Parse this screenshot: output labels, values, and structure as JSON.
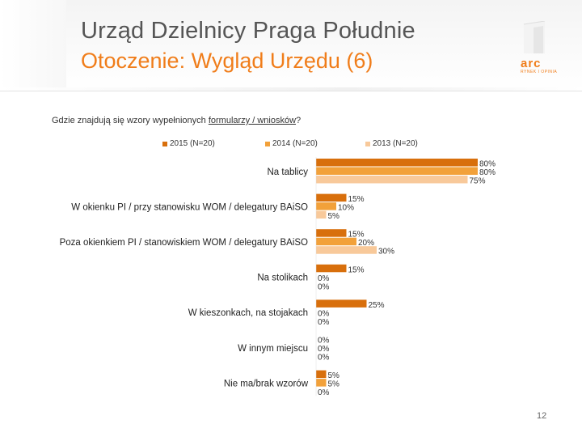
{
  "header": {
    "title": "Urząd Dzielnicy Praga Południe",
    "subtitle": "Otoczenie: Wygląd Urzędu (6)"
  },
  "logo": {
    "word": "arc",
    "tagline": "RYNEK I OPINIA"
  },
  "question": {
    "prefix": "Gdzie znajdują się wzory wypełnionych ",
    "underlined": "formularzy / wniosków",
    "suffix": "?"
  },
  "page_number": "12",
  "colors": {
    "accent": "#f07d1a",
    "s2015": "#d86f0c",
    "s2014": "#f2a13a",
    "s2013": "#f8c99a"
  },
  "chart_data": {
    "type": "bar",
    "orientation": "horizontal",
    "title": "",
    "xlabel": "",
    "ylabel": "",
    "xlim": [
      0,
      80
    ],
    "grid": false,
    "legend_position": "top",
    "categories": [
      "Na tablicy",
      "W okienku PI / przy stanowisku WOM / delegatury BAiSO",
      "Poza okienkiem PI / stanowiskiem WOM / delegatury BAiSO",
      "Na stolikach",
      "W kieszonkach, na stojakach",
      "W innym miejscu",
      "Nie ma/brak wzorów"
    ],
    "series": [
      {
        "name": "2015 (N=20)",
        "color": "#d86f0c",
        "values": [
          80,
          15,
          15,
          15,
          25,
          0,
          5
        ],
        "labels": [
          "80%",
          "15%",
          "15%",
          "15%",
          "25%",
          "0%",
          "5%"
        ]
      },
      {
        "name": "2014 (N=20)",
        "color": "#f2a13a",
        "values": [
          80,
          10,
          20,
          0,
          0,
          0,
          5
        ],
        "labels": [
          "80%",
          "10%",
          "20%",
          "0%",
          "0%",
          "0%",
          "5%"
        ]
      },
      {
        "name": "2013 (N=20)",
        "color": "#f8c99a",
        "values": [
          75,
          5,
          30,
          0,
          0,
          0,
          0
        ],
        "labels": [
          "75%",
          "5%",
          "30%",
          "0%",
          "0%",
          "0%",
          "0%"
        ]
      }
    ]
  }
}
